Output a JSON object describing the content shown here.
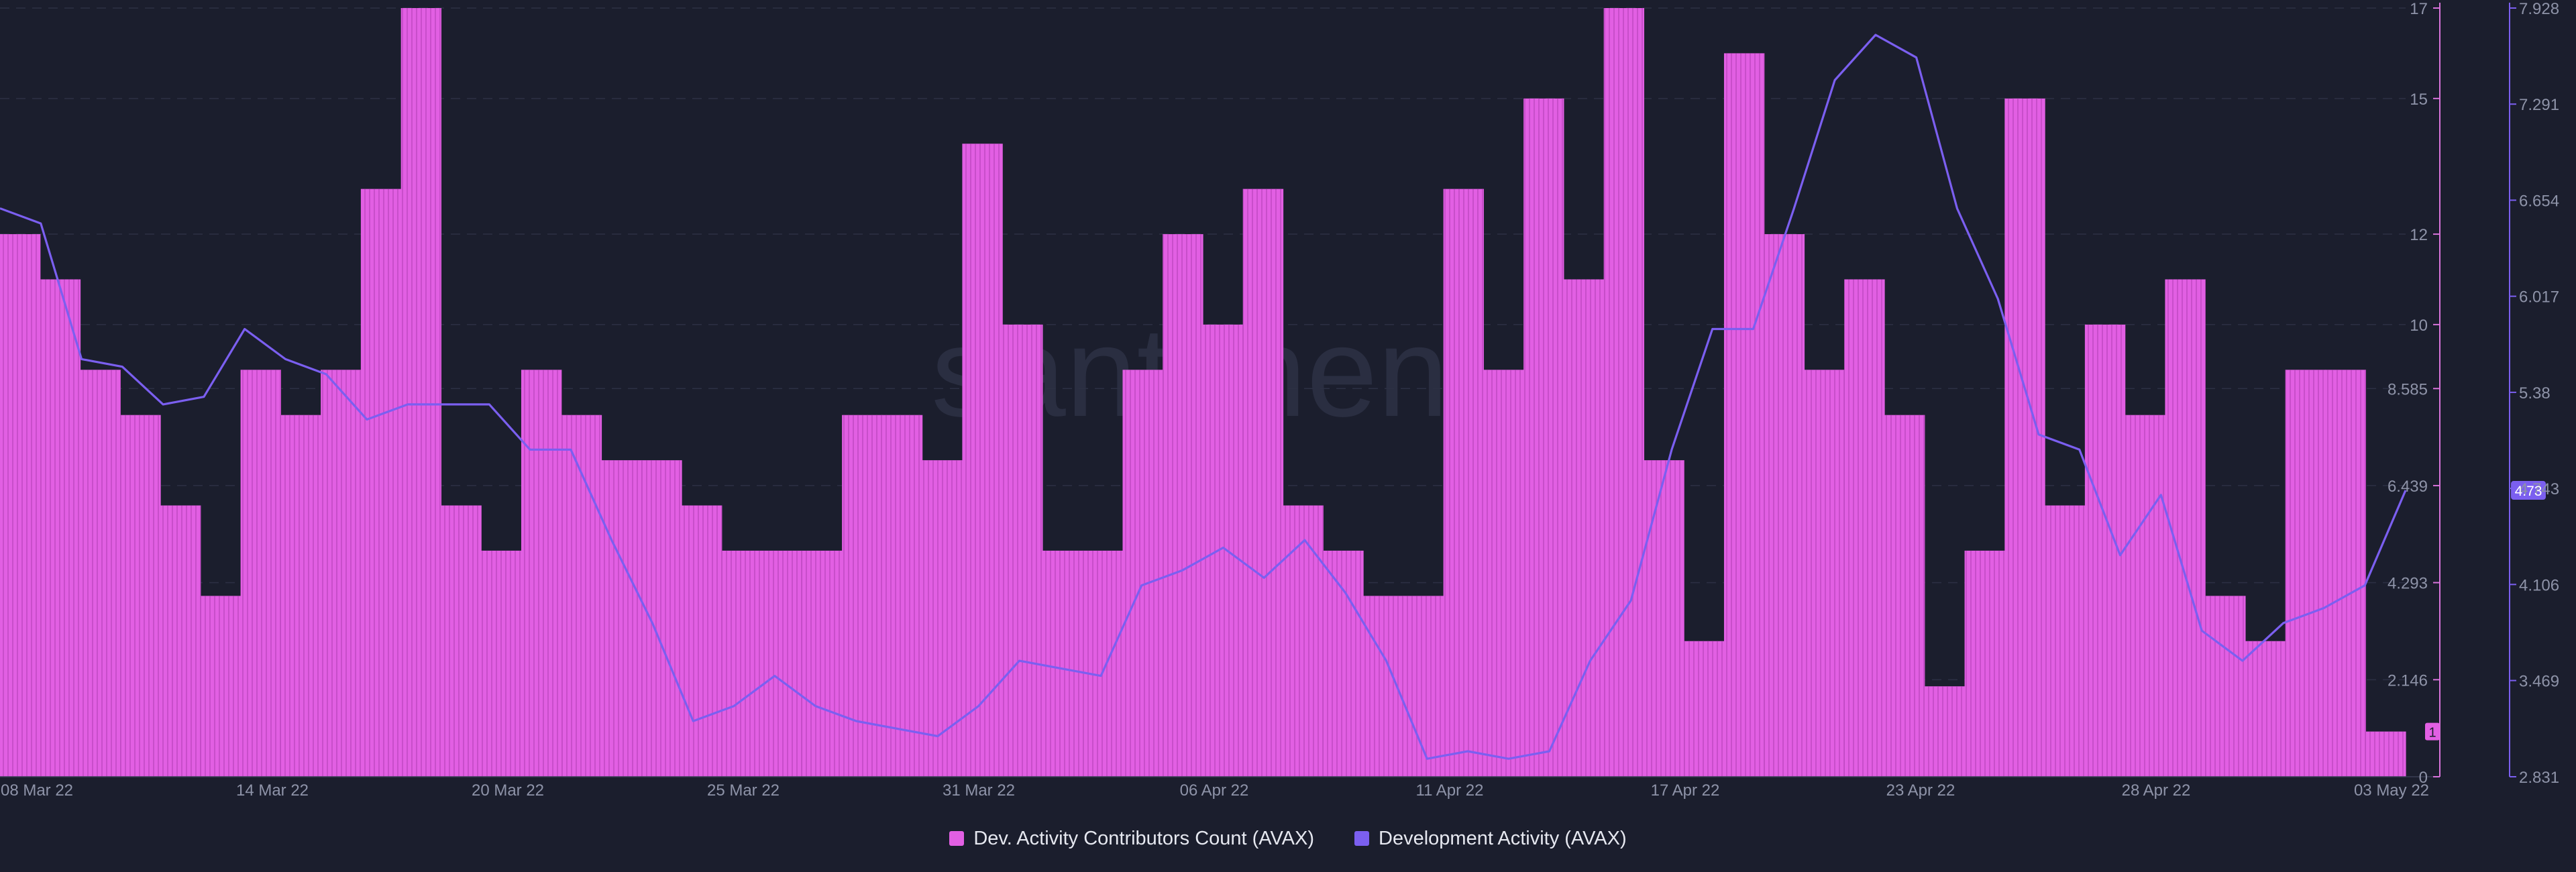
{
  "chart_data": {
    "type": "bar+line",
    "title": "",
    "watermark": "santiment",
    "x_ticks": [
      "08 Mar 22",
      "14 Mar 22",
      "20 Mar 22",
      "25 Mar 22",
      "31 Mar 22",
      "06 Apr 22",
      "11 Apr 22",
      "17 Apr 22",
      "23 Apr 22",
      "28 Apr 22",
      "03 May 22"
    ],
    "y_left": {
      "label": "Dev. Activity Contributors Count (AVAX)",
      "ticks": [
        "0",
        "2.146",
        "4.293",
        "6.439",
        "8.585",
        "10",
        "12",
        "15",
        "17"
      ],
      "range": [
        0,
        17
      ]
    },
    "y_right": {
      "label": "Development Activity (AVAX)",
      "ticks": [
        "2.831",
        "3.469",
        "4.106",
        "4.743",
        "5.38",
        "6.017",
        "6.654",
        "7.291",
        "7.928"
      ],
      "range": [
        2.831,
        7.928
      ]
    },
    "current_value_badges": {
      "left": "1",
      "right": "4.73"
    },
    "series": [
      {
        "name": "Dev. Activity Contributors Count (AVAX)",
        "type": "bar",
        "color": "#e25fe3",
        "values": [
          12,
          11,
          9,
          8,
          6,
          4,
          9,
          8,
          9,
          13,
          17,
          6,
          5,
          9,
          8,
          7,
          7,
          6,
          5,
          5,
          5,
          8,
          8,
          7,
          14,
          10,
          5,
          5,
          9,
          12,
          10,
          13,
          6,
          5,
          4,
          4,
          13,
          9,
          15,
          11,
          17,
          7,
          3,
          16,
          12,
          9,
          11,
          8,
          2,
          5,
          15,
          6,
          10,
          8,
          11,
          4,
          3,
          9,
          9,
          1
        ]
      },
      {
        "name": "Development Activity (AVAX)",
        "type": "line",
        "color": "#7b5ff0",
        "points": [
          [
            0,
            6.6
          ],
          [
            1,
            6.5
          ],
          [
            2,
            5.6
          ],
          [
            3,
            5.55
          ],
          [
            4,
            5.3
          ],
          [
            5,
            5.35
          ],
          [
            6,
            5.8
          ],
          [
            7,
            5.6
          ],
          [
            8,
            5.5
          ],
          [
            9,
            5.2
          ],
          [
            10,
            5.3
          ],
          [
            11,
            5.3
          ],
          [
            12,
            5.3
          ],
          [
            13,
            5.0
          ],
          [
            14,
            5.0
          ],
          [
            15,
            4.4
          ],
          [
            16,
            3.85
          ],
          [
            17,
            3.2
          ],
          [
            18,
            3.3
          ],
          [
            19,
            3.5
          ],
          [
            20,
            3.3
          ],
          [
            21,
            3.2
          ],
          [
            22,
            3.15
          ],
          [
            23,
            3.1
          ],
          [
            24,
            3.3
          ],
          [
            25,
            3.6
          ],
          [
            26,
            3.55
          ],
          [
            27,
            3.5
          ],
          [
            28,
            4.1
          ],
          [
            29,
            4.2
          ],
          [
            30,
            4.35
          ],
          [
            31,
            4.15
          ],
          [
            32,
            4.4
          ],
          [
            33,
            4.05
          ],
          [
            34,
            3.6
          ],
          [
            35,
            2.95
          ],
          [
            36,
            3.0
          ],
          [
            37,
            2.95
          ],
          [
            38,
            3.0
          ],
          [
            39,
            3.6
          ],
          [
            40,
            4.0
          ],
          [
            41,
            5.0
          ],
          [
            42,
            5.8
          ],
          [
            43,
            5.8
          ],
          [
            44,
            6.6
          ],
          [
            45,
            7.45
          ],
          [
            46,
            7.75
          ],
          [
            47,
            7.6
          ],
          [
            48,
            6.6
          ],
          [
            49,
            6.0
          ],
          [
            50,
            5.1
          ],
          [
            51,
            5.0
          ],
          [
            52,
            4.3
          ],
          [
            53,
            4.7
          ],
          [
            54,
            3.8
          ],
          [
            55,
            3.6
          ],
          [
            56,
            3.85
          ],
          [
            57,
            3.95
          ],
          [
            58,
            4.1
          ],
          [
            59,
            4.73
          ]
        ],
        "label": "Development Activity (AVAX)"
      }
    ]
  },
  "legend": {
    "contributors": "Dev. Activity Contributors Count (AVAX)",
    "activity": "Development Activity (AVAX)",
    "contributors_color": "#e25fe3",
    "activity_color": "#7b5ff0"
  }
}
